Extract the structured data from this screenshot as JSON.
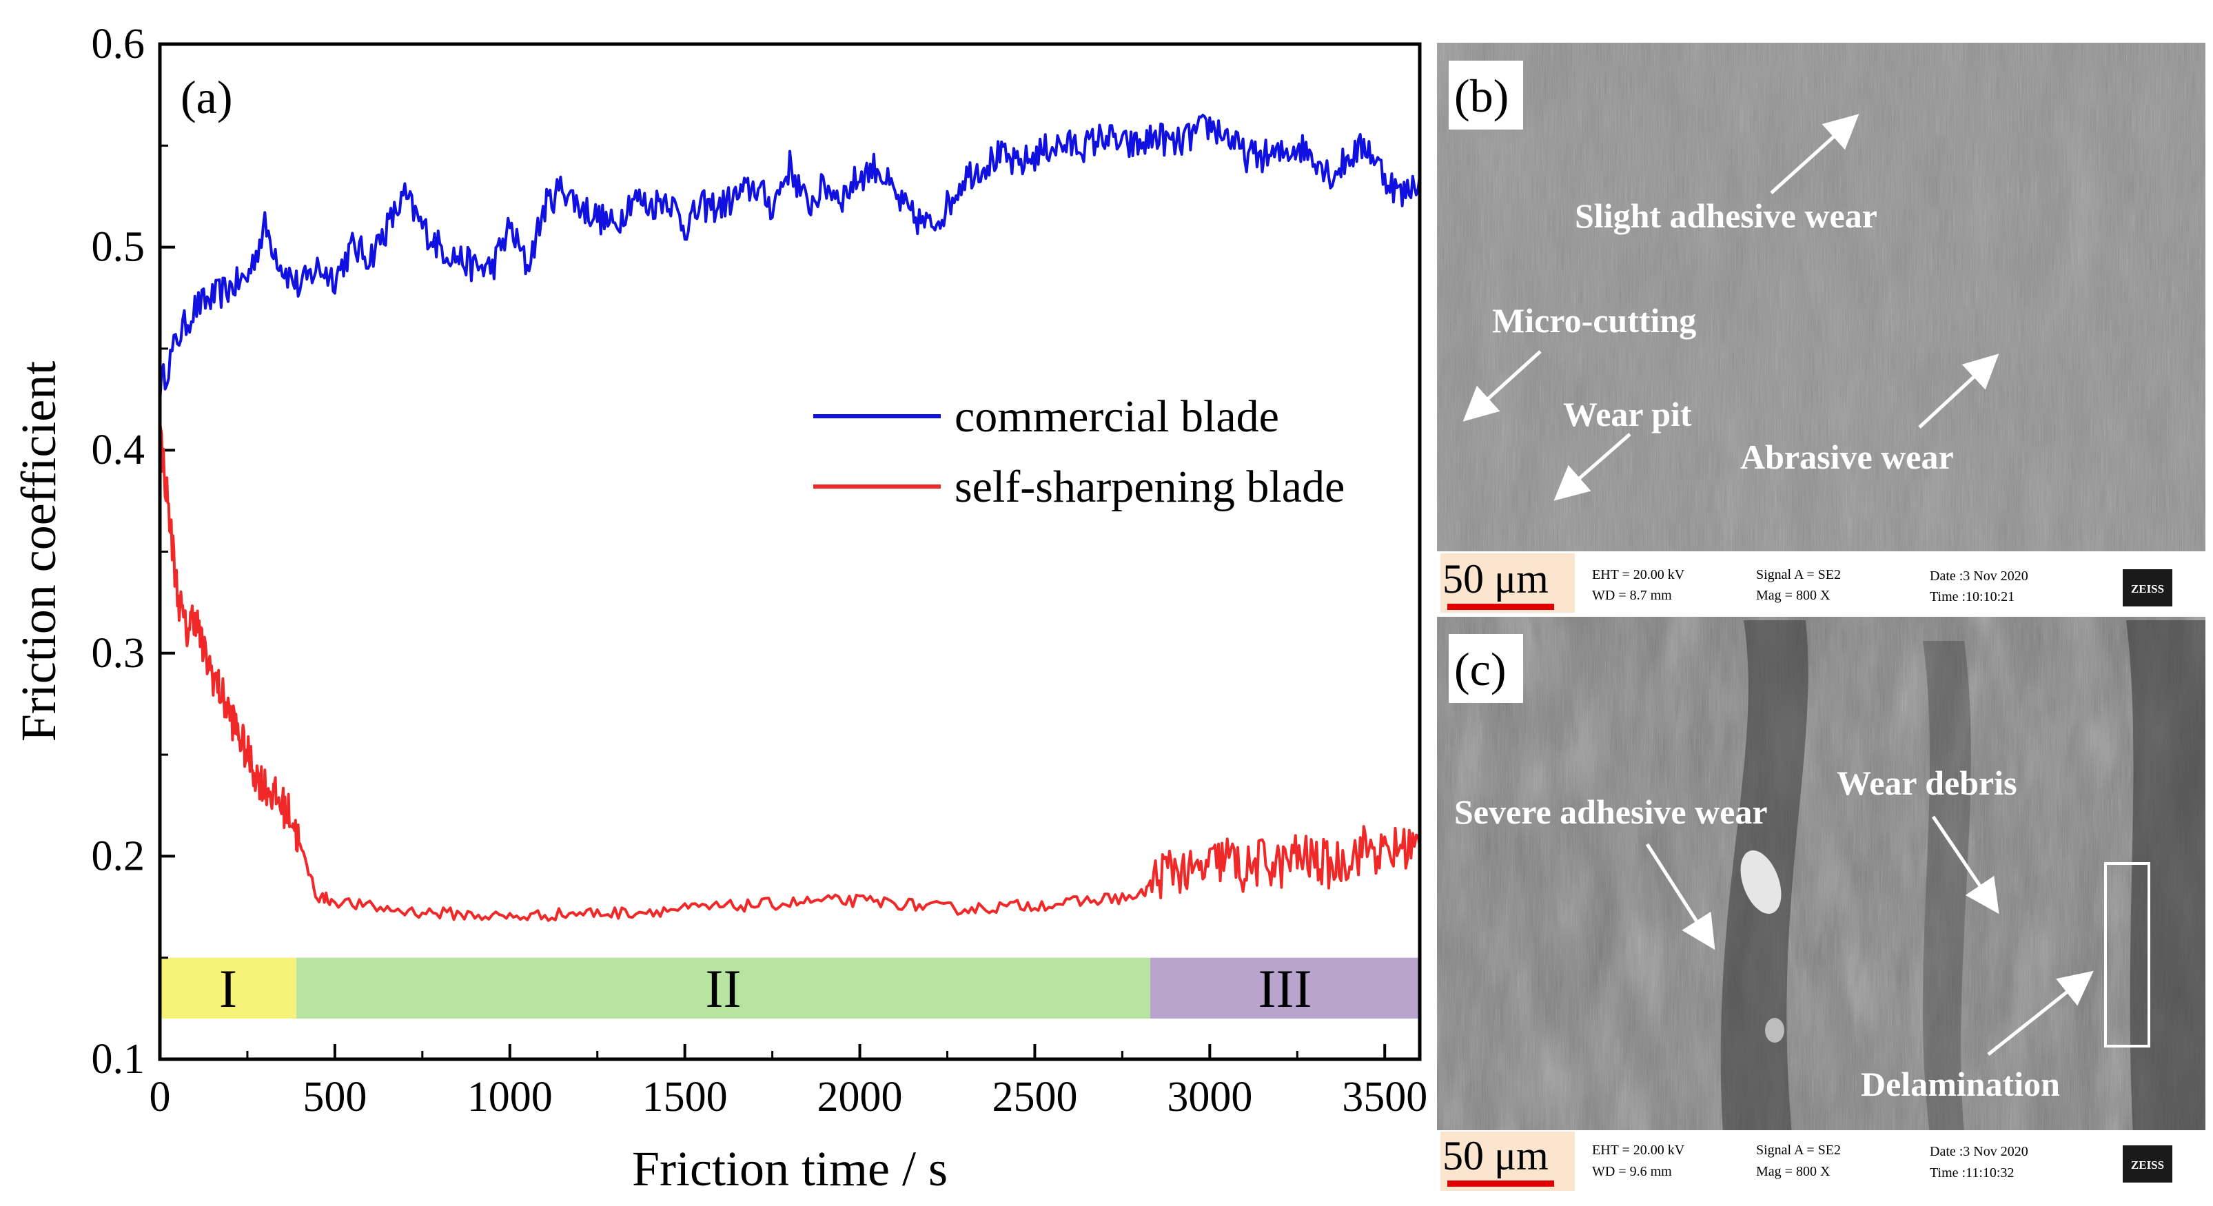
{
  "chart_data": {
    "type": "line",
    "panel_label": "(a)",
    "xlabel": "Friction time / s",
    "ylabel": "Friction coefficient",
    "xlim": [
      0,
      3600
    ],
    "ylim": [
      0.1,
      0.6
    ],
    "xticks": [
      0,
      500,
      1000,
      1500,
      2000,
      2500,
      3000,
      3500
    ],
    "yticks": [
      0.1,
      0.2,
      0.3,
      0.4,
      0.5,
      0.6
    ],
    "xtick_labels": [
      "0",
      "500",
      "1000",
      "1500",
      "2000",
      "2500",
      "3000",
      "3500"
    ],
    "ytick_labels": [
      "0.1",
      "0.2",
      "0.3",
      "0.4",
      "0.5",
      "0.6"
    ],
    "legend_position": "center-right",
    "series": [
      {
        "name": "commercial blade",
        "color": "#1010e0",
        "x": [
          0,
          50,
          100,
          150,
          200,
          250,
          300,
          350,
          400,
          450,
          500,
          550,
          600,
          650,
          700,
          750,
          800,
          850,
          900,
          950,
          1000,
          1050,
          1100,
          1150,
          1200,
          1250,
          1300,
          1350,
          1400,
          1450,
          1500,
          1550,
          1600,
          1650,
          1700,
          1750,
          1800,
          1850,
          1900,
          1950,
          2000,
          2050,
          2100,
          2150,
          2200,
          2250,
          2300,
          2350,
          2400,
          2450,
          2500,
          2550,
          2600,
          2650,
          2700,
          2750,
          2800,
          2850,
          2900,
          2950,
          3000,
          3050,
          3100,
          3150,
          3200,
          3250,
          3300,
          3350,
          3400,
          3450,
          3500,
          3550,
          3600
        ],
        "values": [
          0.43,
          0.455,
          0.47,
          0.475,
          0.48,
          0.485,
          0.51,
          0.49,
          0.48,
          0.49,
          0.485,
          0.5,
          0.495,
          0.51,
          0.525,
          0.51,
          0.5,
          0.495,
          0.49,
          0.49,
          0.51,
          0.49,
          0.52,
          0.53,
          0.52,
          0.515,
          0.51,
          0.525,
          0.52,
          0.525,
          0.51,
          0.52,
          0.52,
          0.525,
          0.53,
          0.52,
          0.54,
          0.52,
          0.53,
          0.525,
          0.535,
          0.54,
          0.525,
          0.515,
          0.51,
          0.52,
          0.535,
          0.54,
          0.545,
          0.54,
          0.545,
          0.55,
          0.55,
          0.55,
          0.555,
          0.55,
          0.55,
          0.555,
          0.55,
          0.555,
          0.56,
          0.555,
          0.545,
          0.545,
          0.545,
          0.55,
          0.545,
          0.535,
          0.545,
          0.55,
          0.535,
          0.525,
          0.535
        ]
      },
      {
        "name": "self-sharpening blade",
        "color": "#f02828",
        "x": [
          0,
          25,
          50,
          75,
          100,
          125,
          150,
          175,
          200,
          225,
          250,
          275,
          300,
          325,
          350,
          375,
          400,
          450,
          500,
          600,
          700,
          800,
          900,
          1000,
          1100,
          1200,
          1300,
          1400,
          1500,
          1600,
          1700,
          1800,
          1900,
          2000,
          2100,
          2200,
          2300,
          2400,
          2500,
          2600,
          2700,
          2800,
          2850,
          2900,
          2950,
          3000,
          3050,
          3100,
          3150,
          3200,
          3250,
          3300,
          3350,
          3400,
          3450,
          3500,
          3550,
          3600
        ],
        "values": [
          0.41,
          0.37,
          0.33,
          0.31,
          0.32,
          0.3,
          0.29,
          0.28,
          0.27,
          0.26,
          0.25,
          0.24,
          0.235,
          0.23,
          0.225,
          0.22,
          0.205,
          0.18,
          0.178,
          0.175,
          0.173,
          0.172,
          0.171,
          0.17,
          0.171,
          0.172,
          0.172,
          0.173,
          0.174,
          0.175,
          0.176,
          0.177,
          0.178,
          0.178,
          0.177,
          0.175,
          0.174,
          0.175,
          0.176,
          0.177,
          0.179,
          0.18,
          0.19,
          0.195,
          0.19,
          0.195,
          0.2,
          0.192,
          0.198,
          0.195,
          0.2,
          0.198,
          0.195,
          0.2,
          0.205,
          0.2,
          0.205,
          0.205
        ]
      }
    ],
    "stages": [
      {
        "label": "I",
        "x_start": 0,
        "x_end": 390,
        "color": "#f7f27a"
      },
      {
        "label": "II",
        "x_start": 390,
        "x_end": 2830,
        "color": "#b8e4a2"
      },
      {
        "label": "III",
        "x_start": 2830,
        "x_end": 3600,
        "color": "#b8a4cc"
      }
    ],
    "stage_band_ylim": [
      0.12,
      0.15
    ]
  },
  "panel_b": {
    "label": "(b)",
    "annotations": [
      "Slight adhesive wear",
      "Micro-cutting",
      "Wear pit",
      "Abrasive wear"
    ],
    "scale_bar": "50 μm",
    "info": {
      "eht": "EHT = 20.00 kV",
      "wd": "WD = 8.7 mm",
      "signal": "Signal A = SE2",
      "mag": "Mag = 800 X",
      "date": "Date :3 Nov 2020",
      "time": "Time :10:10:21",
      "logo": "ZEISS"
    }
  },
  "panel_c": {
    "label": "(c)",
    "annotations": [
      "Severe adhesive wear",
      "Wear debris",
      "Delamination"
    ],
    "scale_bar": "50 μm",
    "info": {
      "eht": "EHT = 20.00 kV",
      "wd": "WD = 9.6 mm",
      "signal": "Signal A = SE2",
      "mag": "Mag = 800 X",
      "date": "Date :3 Nov 2020",
      "time": "Time :11:10:32",
      "logo": "ZEISS"
    }
  }
}
